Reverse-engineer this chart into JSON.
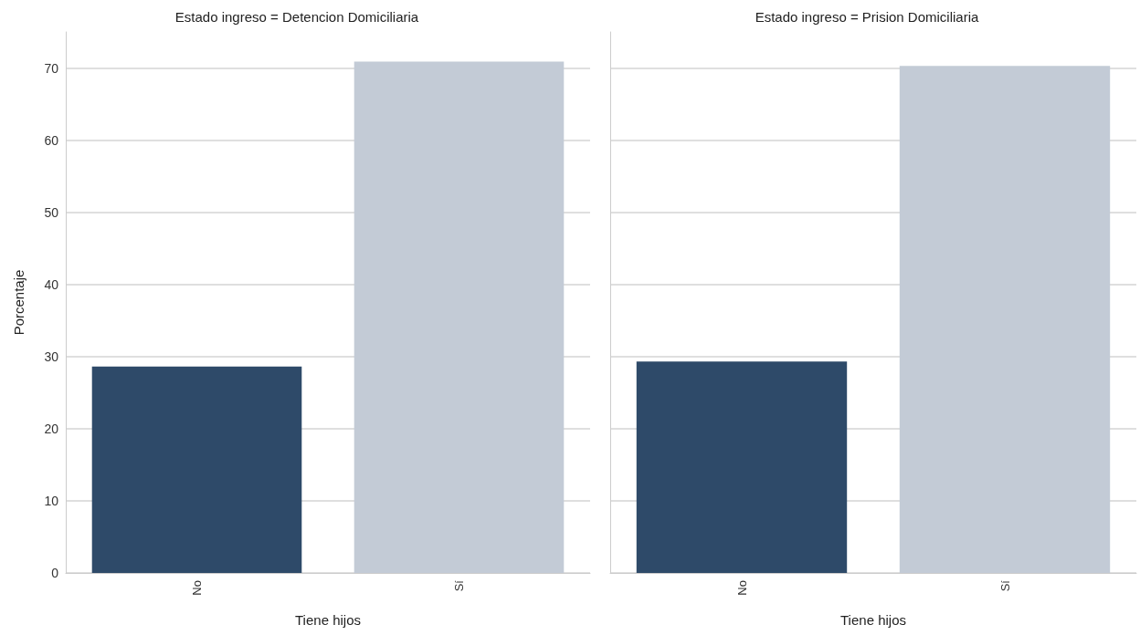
{
  "chart_data": [
    {
      "type": "bar",
      "title": "Estado ingreso = Detencion Domiciliaria",
      "xlabel": "Tiene hijos",
      "ylabel": "Porcentaje",
      "categories": [
        "No",
        "Sí"
      ],
      "values": [
        28.6,
        70.9
      ],
      "colors": [
        "#2e4a69",
        "#c3cbd6"
      ],
      "ylim": [
        0,
        75
      ],
      "yticks": [
        0,
        10,
        20,
        30,
        40,
        50,
        60,
        70
      ],
      "grid": "y"
    },
    {
      "type": "bar",
      "title": "Estado ingreso = Prision Domiciliaria",
      "xlabel": "Tiene hijos",
      "categories": [
        "No",
        "Sí"
      ],
      "values": [
        29.3,
        70.3
      ],
      "colors": [
        "#2e4a69",
        "#c3cbd6"
      ],
      "ylim": [
        0,
        75
      ],
      "yticks": [
        0,
        10,
        20,
        30,
        40,
        50,
        60,
        70
      ],
      "grid": "y",
      "tick_labels": "x"
    }
  ]
}
